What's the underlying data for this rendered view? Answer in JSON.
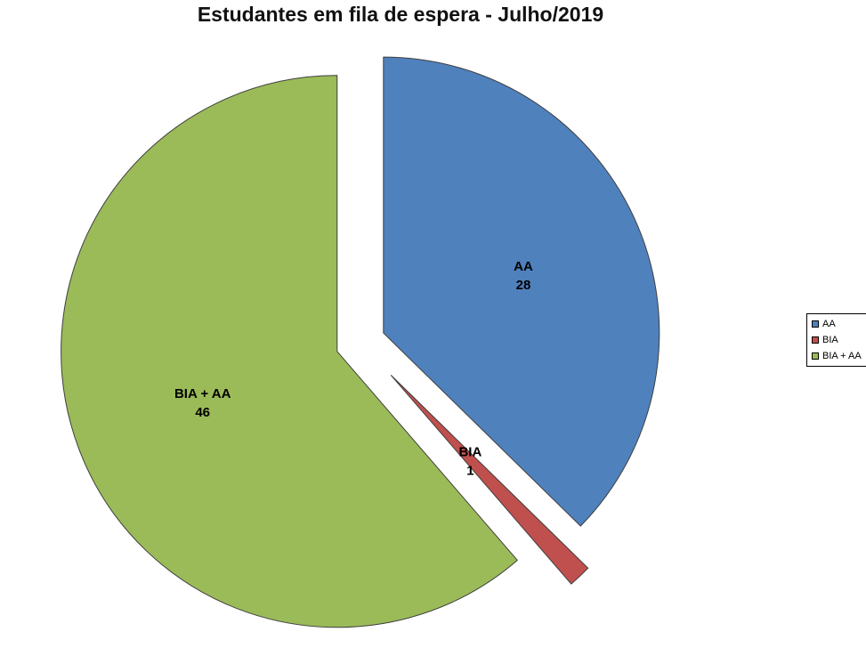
{
  "chart_data": {
    "type": "pie",
    "title": "Estudantes em fila de espera - Julho/2019",
    "categories": [
      "AA",
      "BIA",
      "BIA + AA"
    ],
    "values": [
      28,
      1,
      46
    ],
    "colors": [
      "#4F81BD",
      "#C0504D",
      "#9BBB59"
    ],
    "slice_border_color": "#3f3f3f",
    "exploded": true,
    "start_angle_deg": 90,
    "direction": "clockwise",
    "data_labels": "category and value",
    "legend": {
      "position": "right",
      "entries": [
        "AA",
        "BIA",
        "BIA + AA"
      ]
    }
  }
}
